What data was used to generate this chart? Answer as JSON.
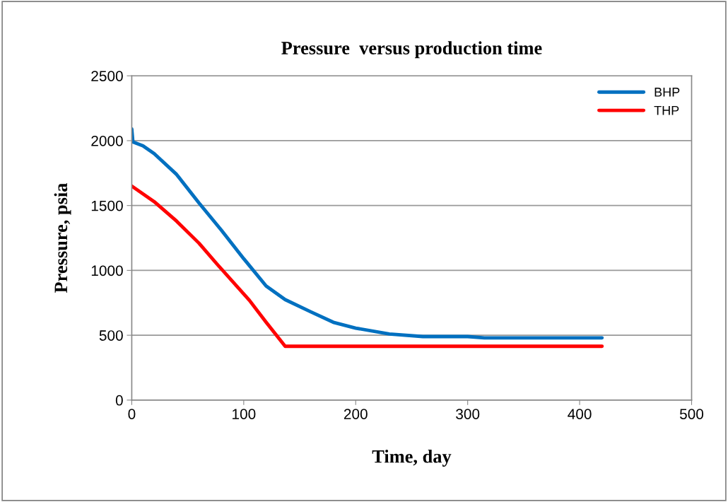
{
  "chart_data": {
    "type": "line",
    "title": "Pressure  versus production time",
    "xlabel": "Time, day",
    "ylabel": "Pressure, psia",
    "xlim": [
      0,
      500
    ],
    "xticks": [
      0,
      100,
      200,
      300,
      400,
      500
    ],
    "ylim": [
      0,
      2500
    ],
    "yticks": [
      0,
      500,
      1000,
      1500,
      2000,
      2500
    ],
    "grid": "y",
    "legend": "top right",
    "marker": "none",
    "line_style": "solid",
    "series": [
      {
        "name": "BHP",
        "color": "#0070c0",
        "x": [
          0,
          1,
          10,
          20,
          40,
          60,
          80,
          100,
          120,
          137,
          160,
          180,
          200,
          230,
          260,
          300,
          315,
          420
        ],
        "values": [
          2090,
          1990,
          1960,
          1900,
          1740,
          1520,
          1310,
          1090,
          880,
          775,
          680,
          600,
          555,
          510,
          490,
          490,
          480,
          480
        ]
      },
      {
        "name": "THP",
        "color": "#ff0000",
        "x": [
          0,
          20,
          40,
          60,
          76,
          105,
          120,
          137,
          420
        ],
        "values": [
          1650,
          1530,
          1380,
          1210,
          1050,
          770,
          600,
          415,
          415
        ]
      }
    ]
  }
}
